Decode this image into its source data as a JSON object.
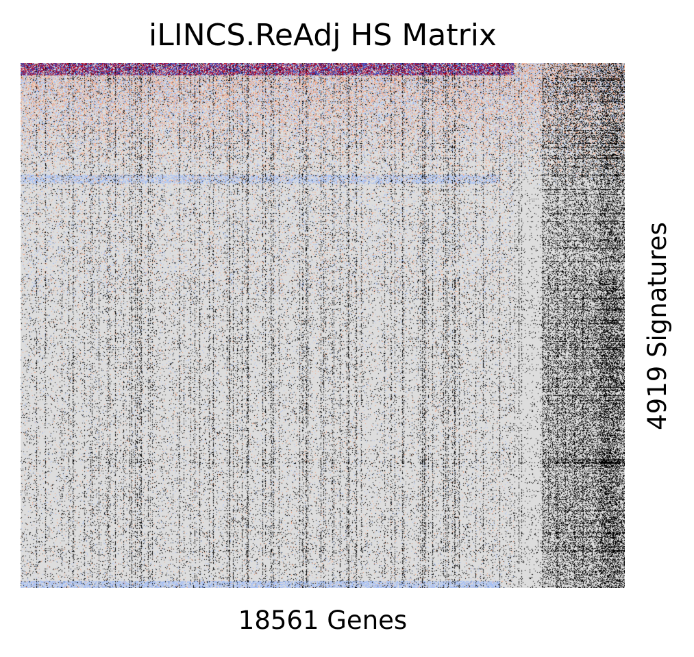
{
  "chart_data": {
    "type": "heatmap",
    "title": "iLINCS.ReAdj HS Matrix",
    "xlabel": "18561 Genes",
    "ylabel": "4919 Signatures",
    "n_columns": 18561,
    "n_rows": 4919,
    "tick_labels": false,
    "grid": false,
    "legend": "none",
    "colormap": {
      "background": "#dddddd",
      "positive": "#b40426",
      "positive_light": "#f4a582",
      "negative": "#3b4cc0",
      "negative_light": "#a6c0f5",
      "missing": "#000000"
    }
  }
}
